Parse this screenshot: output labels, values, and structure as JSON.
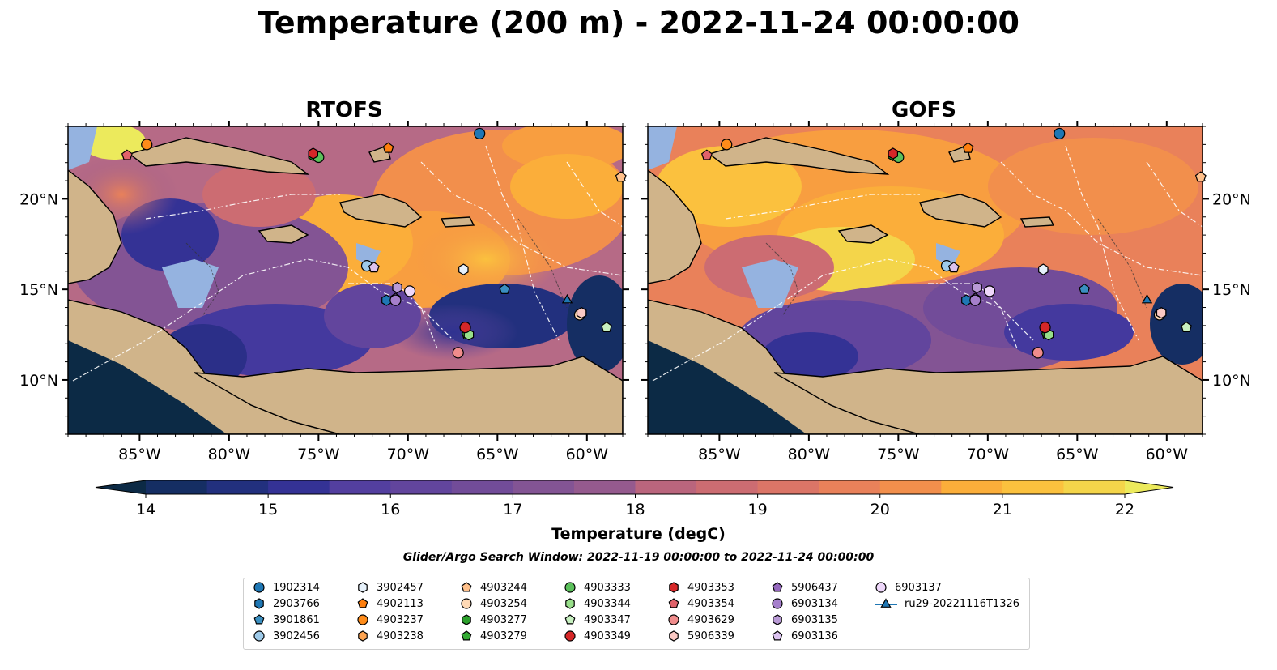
{
  "title": "Temperature (200 m) - 2022-11-24 00:00:00",
  "panels": [
    {
      "title": "RTOFS"
    },
    {
      "title": "GOFS"
    }
  ],
  "map_extent": {
    "lon": [
      -89,
      -58
    ],
    "lat": [
      7,
      24
    ]
  },
  "lon_ticks": [
    {
      "value": -85,
      "label": "85°W"
    },
    {
      "value": -80,
      "label": "80°W"
    },
    {
      "value": -75,
      "label": "75°W"
    },
    {
      "value": -70,
      "label": "70°W"
    },
    {
      "value": -65,
      "label": "65°W"
    },
    {
      "value": -60,
      "label": "60°W"
    }
  ],
  "lat_ticks": [
    {
      "value": 20,
      "label": "20°N"
    },
    {
      "value": 15,
      "label": "15°N"
    },
    {
      "value": 10,
      "label": "10°N"
    }
  ],
  "colorbar": {
    "label": "Temperature (degC)",
    "range": [
      14,
      22
    ],
    "extend": "both",
    "ticks": [
      "14",
      "15",
      "16",
      "17",
      "18",
      "19",
      "20",
      "21",
      "22"
    ],
    "colors": [
      "#0c2a45",
      "#152e63",
      "#22307e",
      "#343295",
      "#44399e",
      "#533f9f",
      "#62459d",
      "#724c99",
      "#835494",
      "#955a8e",
      "#a75f86",
      "#ba657d",
      "#cc6c72",
      "#db7567",
      "#e9815a",
      "#f28f4c",
      "#f89e40",
      "#fbae3a",
      "#fbc13e",
      "#f4d54a",
      "#ecea5c"
    ]
  },
  "search_window": "Glider/Argo Search Window: 2022-11-19 00:00:00 to 2022-11-24 00:00:00",
  "legend": [
    {
      "label": "1902314",
      "shape": "circle",
      "color": "#1f77b4"
    },
    {
      "label": "2903766",
      "shape": "hexagon",
      "color": "#1f77b4"
    },
    {
      "label": "3901861",
      "shape": "pentagon",
      "color": "#3a8fc1"
    },
    {
      "label": "3902456",
      "shape": "circle",
      "color": "#9ecae9"
    },
    {
      "label": "3902457",
      "shape": "hexagon",
      "color": "#e6f1fb"
    },
    {
      "label": "4902113",
      "shape": "pentagon",
      "color": "#ff7f0e"
    },
    {
      "label": "4903237",
      "shape": "circle",
      "color": "#ff8c1a"
    },
    {
      "label": "4903238",
      "shape": "hexagon",
      "color": "#ffa552"
    },
    {
      "label": "4903244",
      "shape": "pentagon",
      "color": "#ffc08a"
    },
    {
      "label": "4903254",
      "shape": "circle",
      "color": "#ffd9b5"
    },
    {
      "label": "4903277",
      "shape": "hexagon",
      "color": "#2ca02c"
    },
    {
      "label": "4903279",
      "shape": "pentagon",
      "color": "#33aa33"
    },
    {
      "label": "4903333",
      "shape": "circle",
      "color": "#5bc05b"
    },
    {
      "label": "4903344",
      "shape": "hexagon",
      "color": "#98df8a"
    },
    {
      "label": "4903347",
      "shape": "pentagon",
      "color": "#c7f0c0"
    },
    {
      "label": "4903349",
      "shape": "circle",
      "color": "#d62728"
    },
    {
      "label": "4903353",
      "shape": "hexagon",
      "color": "#d62728"
    },
    {
      "label": "4903354",
      "shape": "pentagon",
      "color": "#e0626a"
    },
    {
      "label": "4903629",
      "shape": "circle",
      "color": "#f08c8c"
    },
    {
      "label": "5906339",
      "shape": "hexagon",
      "color": "#fbc9c4"
    },
    {
      "label": "5906437",
      "shape": "pentagon",
      "color": "#9467bd"
    },
    {
      "label": "6903134",
      "shape": "circle",
      "color": "#a57fcb"
    },
    {
      "label": "6903135",
      "shape": "hexagon",
      "color": "#b99ad6"
    },
    {
      "label": "6903136",
      "shape": "pentagon",
      "color": "#dcc3f0"
    },
    {
      "label": "6903137",
      "shape": "circle",
      "color": "#eed7fa"
    },
    {
      "label": "ru29-20221116T1326",
      "shape": "triangle-line",
      "color": "#1f77b4"
    }
  ],
  "markers": [
    {
      "id": "1902314",
      "lon": -66.0,
      "lat": 23.6
    },
    {
      "id": "2903766",
      "lon": -71.2,
      "lat": 14.4
    },
    {
      "id": "3901861",
      "lon": -64.6,
      "lat": 15.0
    },
    {
      "id": "3902456",
      "lon": -72.3,
      "lat": 16.3
    },
    {
      "id": "3902457",
      "lon": -66.9,
      "lat": 16.1
    },
    {
      "id": "4902113",
      "lon": -71.1,
      "lat": 22.8
    },
    {
      "id": "4903237",
      "lon": -84.6,
      "lat": 23.0
    },
    {
      "id": "4903238",
      "lon": -60.3,
      "lat": 13.7
    },
    {
      "id": "4903244",
      "lon": -58.1,
      "lat": 21.2
    },
    {
      "id": "4903254",
      "lon": -60.4,
      "lat": 13.6
    },
    {
      "id": "4903277",
      "lon": -75.3,
      "lat": 22.4
    },
    {
      "id": "4903279",
      "lon": -66.7,
      "lat": 12.5
    },
    {
      "id": "4903333",
      "lon": -75.0,
      "lat": 22.3
    },
    {
      "id": "4903344",
      "lon": -66.6,
      "lat": 12.5
    },
    {
      "id": "4903347",
      "lon": -58.9,
      "lat": 12.9
    },
    {
      "id": "4903349",
      "lon": -66.8,
      "lat": 12.9
    },
    {
      "id": "4903353",
      "lon": -75.3,
      "lat": 22.5
    },
    {
      "id": "4903354",
      "lon": -85.7,
      "lat": 22.4
    },
    {
      "id": "4903629",
      "lon": -67.2,
      "lat": 11.5
    },
    {
      "id": "5906339",
      "lon": -60.3,
      "lat": 13.7
    },
    {
      "id": "5906437",
      "lon": -70.7,
      "lat": 14.5
    },
    {
      "id": "6903134",
      "lon": -70.7,
      "lat": 14.4
    },
    {
      "id": "6903135",
      "lon": -70.6,
      "lat": 15.1
    },
    {
      "id": "6903136",
      "lon": -71.9,
      "lat": 16.2
    },
    {
      "id": "6903137",
      "lon": -69.9,
      "lat": 14.9
    },
    {
      "id": "ru29-20221116T1326",
      "lon": -61.1,
      "lat": 14.4
    }
  ]
}
